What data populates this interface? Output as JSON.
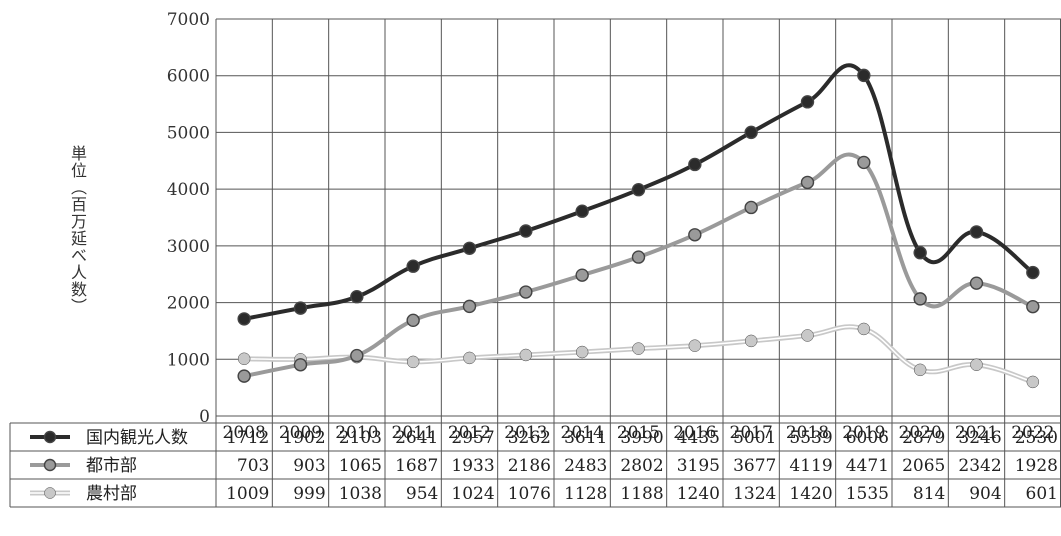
{
  "chart_data": {
    "type": "line",
    "ylabel": "単位（百万延べ人数）",
    "ylim": [
      0,
      7000
    ],
    "yticks": [
      "0",
      "1000",
      "2000",
      "3000",
      "4000",
      "5000",
      "6000",
      "7000"
    ],
    "categories": [
      "2008",
      "2009",
      "2010",
      "2011",
      "2012",
      "2013",
      "2014",
      "2015",
      "2016",
      "2017",
      "2018",
      "2019",
      "2020",
      "2021",
      "2022"
    ],
    "grid": true,
    "legend": "data-table-left",
    "series": [
      {
        "name": "国内観光人数",
        "color": "#2b2b2b",
        "style": "solid",
        "values": [
          1712,
          1902,
          2103,
          2641,
          2957,
          3262,
          3611,
          3990,
          4435,
          5001,
          5539,
          6006,
          2879,
          3246,
          2530
        ]
      },
      {
        "name": "都市部",
        "color": "#9a9a9a",
        "style": "solid",
        "values": [
          703,
          903,
          1065,
          1687,
          1933,
          2186,
          2483,
          2802,
          3195,
          3677,
          4119,
          4471,
          2065,
          2342,
          1928
        ]
      },
      {
        "name": "農村部",
        "color": "#c8c8c8",
        "style": "double",
        "values": [
          1009,
          999,
          1038,
          954,
          1024,
          1076,
          1128,
          1188,
          1240,
          1324,
          1420,
          1535,
          814,
          904,
          601
        ]
      }
    ]
  }
}
